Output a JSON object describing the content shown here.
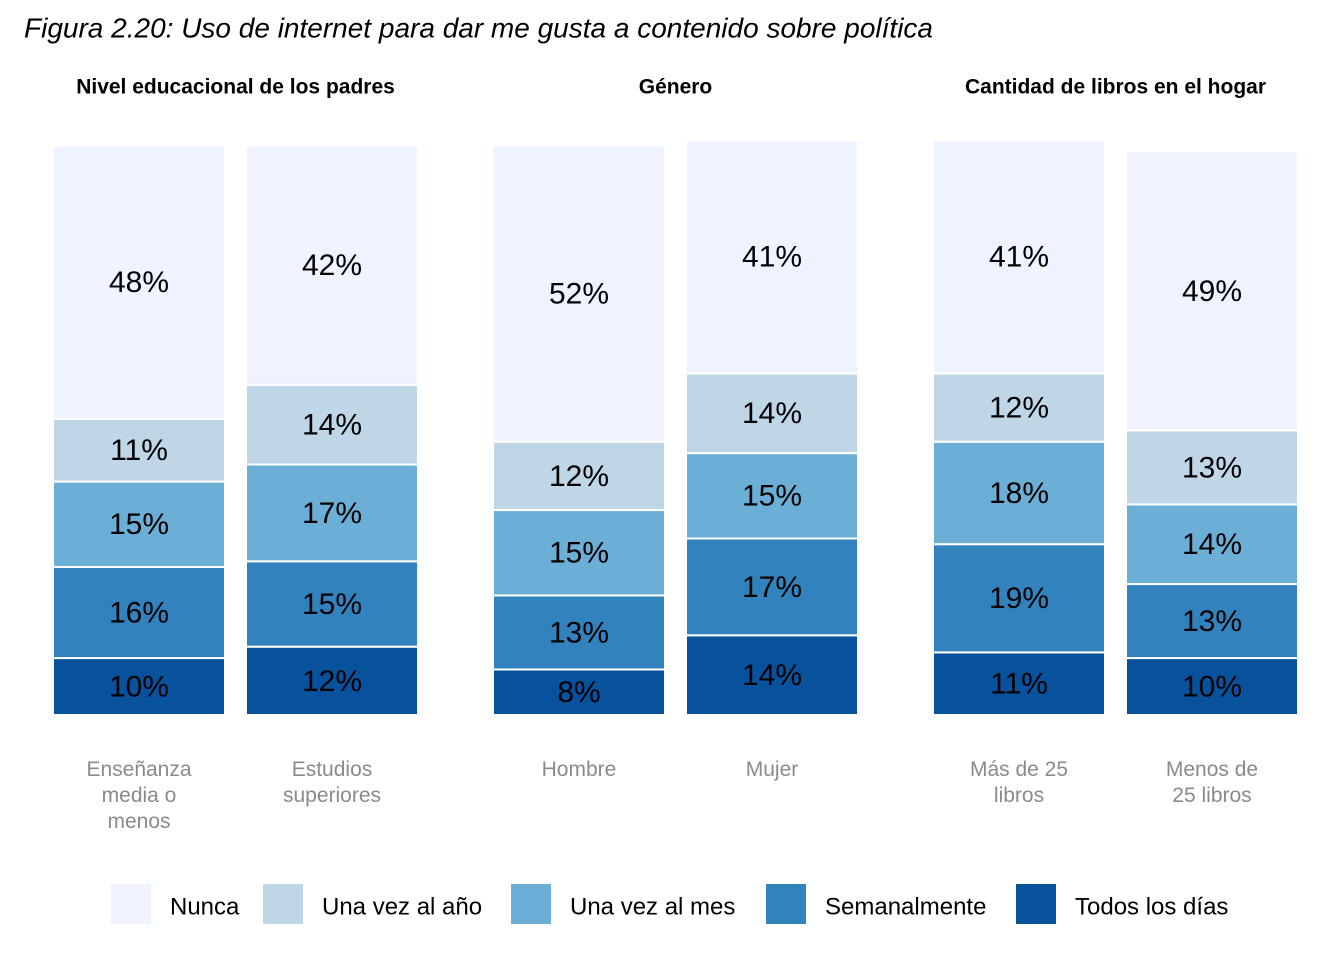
{
  "title": "Figura 2.20: Uso de internet para dar me gusta a contenido sobre política",
  "chart_data": [
    {
      "type": "bar",
      "title": "Nivel educacional de los padres",
      "categories": [
        "Enseñanza media o menos",
        "Estudios superiores"
      ],
      "series": [
        {
          "name": "Nunca",
          "color": "#eff3ff",
          "values": [
            48,
            42
          ],
          "value_labels": [
            "48%",
            "42%"
          ]
        },
        {
          "name": "Una vez al año",
          "color": "#bfd6e6",
          "values": [
            11,
            14
          ],
          "value_labels": [
            "11%",
            "14%"
          ]
        },
        {
          "name": "Una vez al mes",
          "color": "#6baed6",
          "values": [
            15,
            17
          ],
          "value_labels": [
            "15%",
            "17%"
          ]
        },
        {
          "name": "Semanalmente",
          "color": "#3182bd",
          "values": [
            16,
            15
          ],
          "value_labels": [
            "16%",
            "15%"
          ]
        },
        {
          "name": "Todos los días",
          "color": "#08519c",
          "values": [
            10,
            12
          ],
          "value_labels": [
            "10%",
            "12%"
          ]
        }
      ]
    },
    {
      "type": "bar",
      "title": "Género",
      "categories": [
        "Hombre",
        "Mujer"
      ],
      "series": [
        {
          "color": "#eff3ff",
          "values": [
            52,
            41
          ],
          "value_labels": [
            "52%",
            "41%"
          ]
        },
        {
          "color": "#bfd6e6",
          "values": [
            12,
            14
          ],
          "value_labels": [
            "12%",
            "14%"
          ]
        },
        {
          "color": "#6baed6",
          "values": [
            15,
            15
          ],
          "value_labels": [
            "15%",
            "15%"
          ]
        },
        {
          "color": "#3182bd",
          "values": [
            13,
            17
          ],
          "value_labels": [
            "13%",
            "17%"
          ]
        },
        {
          "color": "#08519c",
          "values": [
            8,
            14
          ],
          "value_labels": [
            "8%",
            "14%"
          ]
        }
      ]
    },
    {
      "type": "bar",
      "title": "Cantidad de libros en el hogar",
      "categories": [
        "Más de 25 libros",
        "Menos de 25 libros"
      ],
      "series": [
        {
          "color": "#eff3ff",
          "values": [
            41,
            49
          ],
          "value_labels": [
            "41%",
            "49%"
          ]
        },
        {
          "color": "#bfd6e6",
          "values": [
            12,
            13
          ],
          "value_labels": [
            "12%",
            "13%"
          ]
        },
        {
          "color": "#6baed6",
          "values": [
            18,
            14
          ],
          "value_labels": [
            "18%",
            "14%"
          ]
        },
        {
          "color": "#3182bd",
          "values": [
            19,
            13
          ],
          "value_labels": [
            "19%",
            "13%"
          ]
        },
        {
          "color": "#08519c",
          "values": [
            11,
            10
          ],
          "value_labels": [
            "11%",
            "10%"
          ]
        }
      ]
    }
  ]
}
